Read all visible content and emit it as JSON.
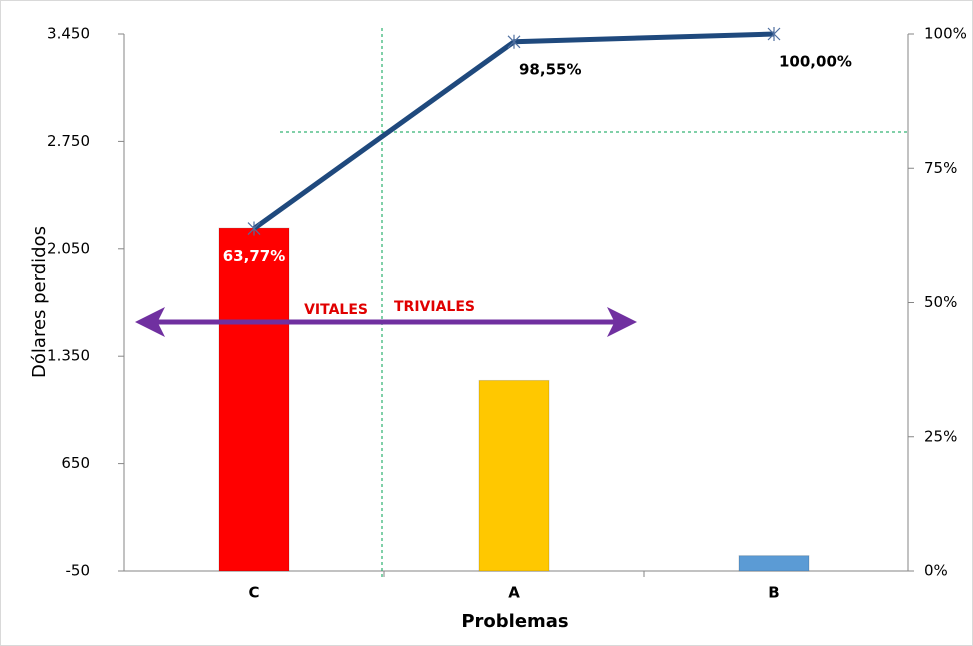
{
  "chart_data": {
    "type": "pareto",
    "x_label": "Problemas",
    "y_label": "Dólares perdidos",
    "categories": [
      "C",
      "A",
      "B"
    ],
    "series": [
      {
        "type": "bar",
        "colors": [
          "#ff0000",
          "#ffc800",
          "#5b9bd5"
        ],
        "values": [
          2185,
          1192,
          50
        ]
      },
      {
        "type": "line",
        "axis": "y2",
        "color": "#1f497d",
        "values": [
          63.77,
          98.55,
          100
        ],
        "value_labels": [
          "63,77%",
          "98,55%",
          "100,00%"
        ]
      }
    ],
    "ylim": [
      -50,
      3450
    ],
    "yticks": [
      {
        "value": -50,
        "label": "-50"
      },
      {
        "value": 650,
        "label": "650"
      },
      {
        "value": 1350,
        "label": "1.350"
      },
      {
        "value": 2050,
        "label": "2.050"
      },
      {
        "value": 2750,
        "label": "2.750"
      },
      {
        "value": 3450,
        "label": "3.450"
      }
    ],
    "y2lim": [
      0,
      100
    ],
    "y2ticks": [
      {
        "value": 0,
        "label": "0%"
      },
      {
        "value": 25,
        "label": "25%"
      },
      {
        "value": 50,
        "label": "50%"
      },
      {
        "value": 75,
        "label": "75%"
      },
      {
        "value": 100,
        "label": "100%"
      }
    ],
    "annotations": [
      "VITALES",
      "TRIVIALES"
    ]
  }
}
